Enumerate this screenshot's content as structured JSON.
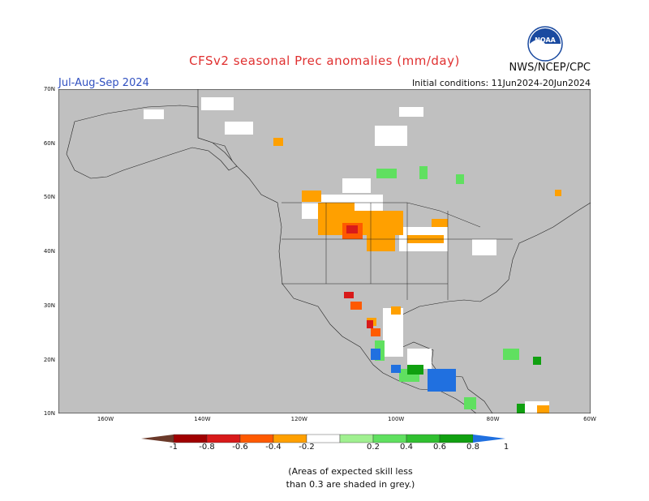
{
  "header": {
    "title": "CFSv2 seasonal Prec anomalies (mm/day)",
    "season": "Jul-Aug-Sep 2024",
    "initial_conditions": "Initial conditions: 11Jun2024-20Jun2024",
    "agency": "NWS/NCEP/CPC",
    "logo_text": "NOAA"
  },
  "axes": {
    "lat_labels": [
      "70N",
      "60N",
      "50N",
      "40N",
      "30N",
      "20N",
      "10N"
    ],
    "lon_labels": [
      "160W",
      "140W",
      "120W",
      "100W",
      "80W",
      "60W"
    ]
  },
  "legend": {
    "tick_labels": [
      "-1",
      "-0.8",
      "-0.6",
      "-0.4",
      "-0.2",
      "0.2",
      "0.4",
      "0.6",
      "0.8",
      "1"
    ],
    "colors": [
      "#6b3a2a",
      "#a00000",
      "#d81a1a",
      "#ff5a00",
      "#ffa000",
      "#ffffff",
      "#a0f090",
      "#60e060",
      "#30c030",
      "#10a010",
      "#2070e0"
    ],
    "note_line1": "(Areas of expected skill less",
    "note_line2": "than 0.3 are shaded in grey.)"
  },
  "colors": {
    "grey_mask": "#c0c0c0",
    "title": "#e03030",
    "season": "#3050c0"
  }
}
